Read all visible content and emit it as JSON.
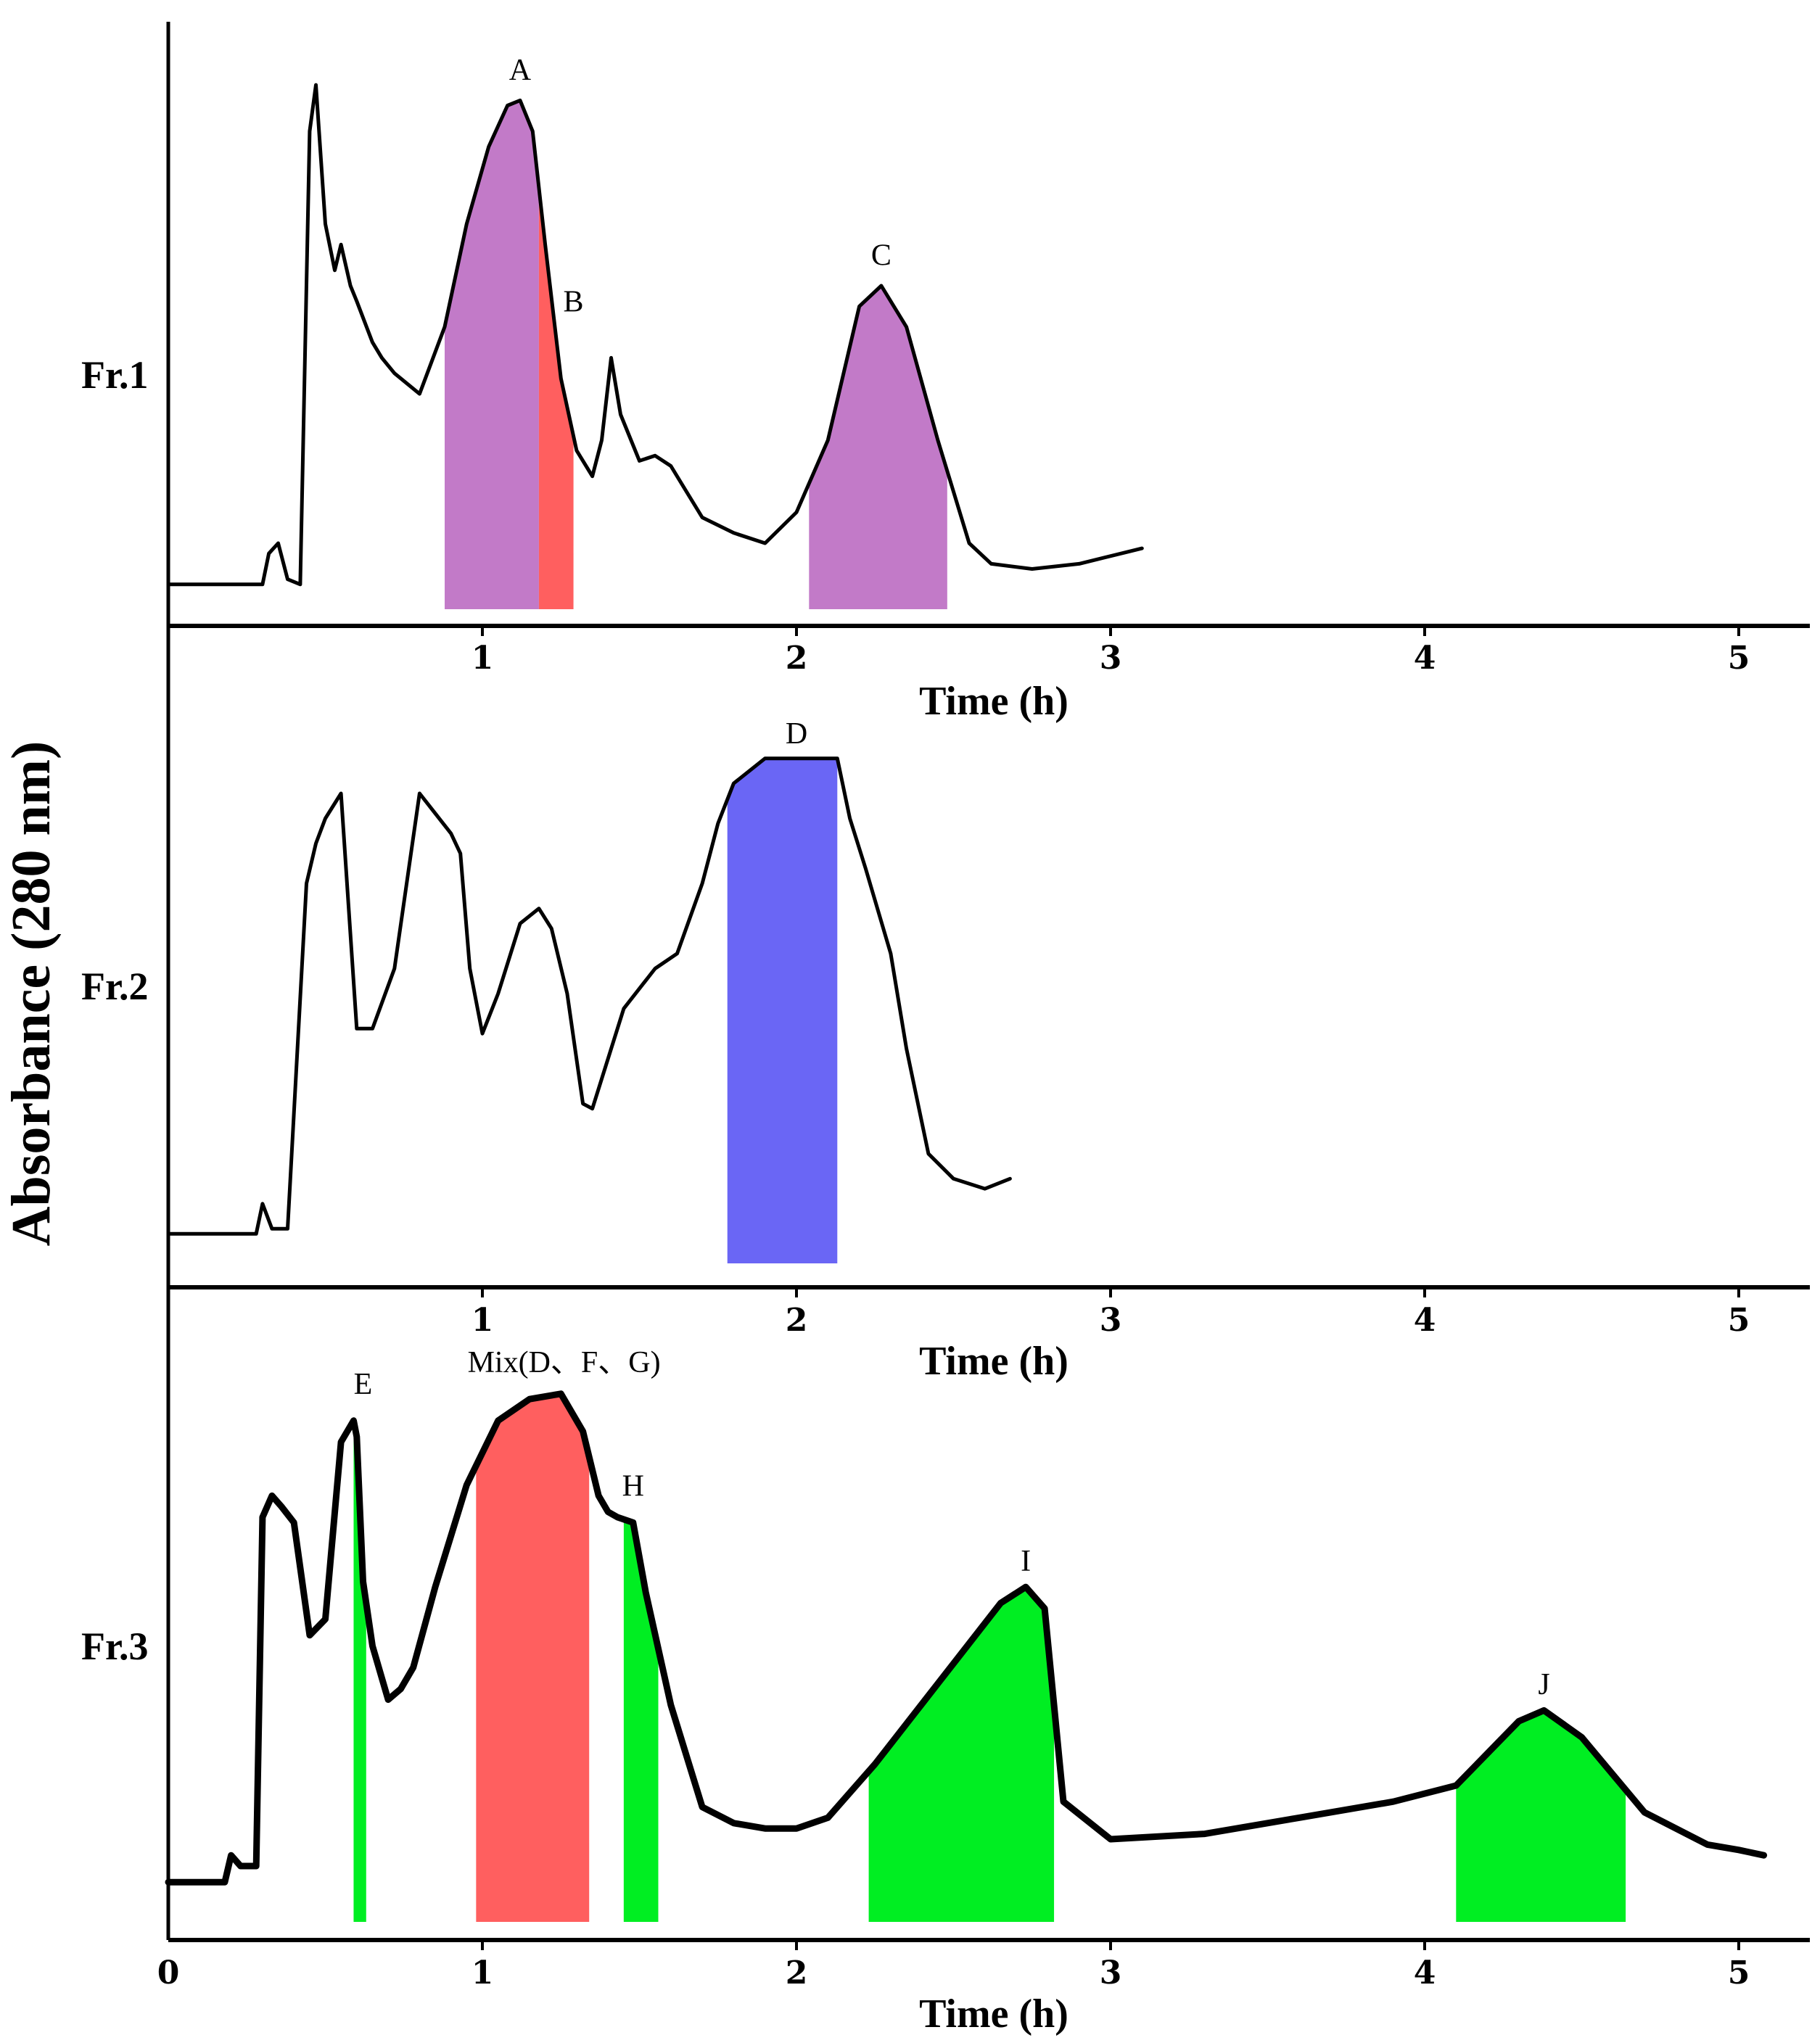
{
  "chart_data": {
    "type": "line",
    "ylabel": "Absorbance (280 nm)",
    "xlabel": "Time (h)",
    "xlim": [
      0,
      5.2
    ],
    "xticks": [
      "0",
      "1",
      "2",
      "3",
      "4",
      "5"
    ],
    "colors": {
      "purple": "#c27ac8",
      "red": "#ff5f5f",
      "blue": "#6a66f5",
      "green": "#00ee22",
      "line": "#000000"
    },
    "panels": [
      {
        "label": "Fr.1",
        "x_title": "Time (h)",
        "tick_labels": [
          "1",
          "2",
          "3",
          "4",
          "5"
        ],
        "x": [
          0,
          0.3,
          0.32,
          0.35,
          0.38,
          0.42,
          0.45,
          0.47,
          0.5,
          0.53,
          0.55,
          0.58,
          0.6,
          0.65,
          0.68,
          0.72,
          0.8,
          0.88,
          0.95,
          1.02,
          1.08,
          1.12,
          1.16,
          1.2,
          1.25,
          1.3,
          1.35,
          1.38,
          1.41,
          1.44,
          1.5,
          1.55,
          1.6,
          1.65,
          1.7,
          1.8,
          1.9,
          2.0,
          2.1,
          2.2,
          2.27,
          2.35,
          2.45,
          2.55,
          2.62,
          2.75,
          2.9,
          3.1
        ],
        "y": [
          0.02,
          0.02,
          0.08,
          0.1,
          0.03,
          0.02,
          0.9,
          0.99,
          0.72,
          0.63,
          0.68,
          0.6,
          0.57,
          0.49,
          0.46,
          0.43,
          0.39,
          0.52,
          0.72,
          0.87,
          0.95,
          0.96,
          0.9,
          0.68,
          0.42,
          0.28,
          0.23,
          0.3,
          0.46,
          0.35,
          0.26,
          0.27,
          0.25,
          0.2,
          0.15,
          0.12,
          0.1,
          0.16,
          0.3,
          0.56,
          0.6,
          0.52,
          0.3,
          0.1,
          0.06,
          0.05,
          0.06,
          0.09
        ],
        "shaded_regions": [
          {
            "label": "A",
            "from": 0.88,
            "to": 1.18,
            "color": "purple"
          },
          {
            "label": "B",
            "from": 1.18,
            "to": 1.29,
            "color": "red"
          },
          {
            "label": "C",
            "from": 2.04,
            "to": 2.48,
            "color": "purple"
          }
        ],
        "annotations": [
          {
            "text": "A",
            "x": 1.12,
            "y": 1.0
          },
          {
            "text": "B",
            "x": 1.29,
            "y": 0.55
          },
          {
            "text": "C",
            "x": 2.27,
            "y": 0.64
          }
        ]
      },
      {
        "label": "Fr.2",
        "x_title": "Time (h)",
        "tick_labels": [
          "1",
          "2",
          "3",
          "4",
          "5"
        ],
        "x": [
          0,
          0.28,
          0.3,
          0.33,
          0.38,
          0.44,
          0.47,
          0.5,
          0.55,
          0.6,
          0.65,
          0.72,
          0.8,
          0.85,
          0.9,
          0.93,
          0.96,
          1.0,
          1.05,
          1.12,
          1.18,
          1.22,
          1.27,
          1.32,
          1.35,
          1.45,
          1.55,
          1.62,
          1.7,
          1.75,
          1.8,
          1.9,
          2.0,
          2.13,
          2.17,
          2.22,
          2.3,
          2.35,
          2.42,
          2.5,
          2.6,
          2.68
        ],
        "y": [
          0.02,
          0.02,
          0.08,
          0.03,
          0.03,
          0.72,
          0.8,
          0.85,
          0.9,
          0.43,
          0.43,
          0.55,
          0.9,
          0.86,
          0.82,
          0.78,
          0.55,
          0.42,
          0.5,
          0.64,
          0.67,
          0.63,
          0.5,
          0.28,
          0.27,
          0.47,
          0.55,
          0.58,
          0.72,
          0.84,
          0.92,
          0.97,
          0.97,
          0.97,
          0.85,
          0.75,
          0.58,
          0.39,
          0.18,
          0.13,
          0.11,
          0.13
        ],
        "shaded_regions": [
          {
            "label": "D",
            "from": 1.78,
            "to": 2.13,
            "color": "blue"
          }
        ],
        "annotations": [
          {
            "text": "D",
            "x": 2.0,
            "y": 1.0
          }
        ]
      },
      {
        "label": "Fr.3",
        "x_title": "Time (h)",
        "tick_labels": [
          "0",
          "1",
          "2",
          "3",
          "4",
          "5"
        ],
        "x": [
          0,
          0.18,
          0.2,
          0.23,
          0.28,
          0.3,
          0.33,
          0.36,
          0.4,
          0.45,
          0.5,
          0.55,
          0.59,
          0.6,
          0.62,
          0.65,
          0.7,
          0.74,
          0.78,
          0.85,
          0.95,
          1.05,
          1.15,
          1.25,
          1.32,
          1.37,
          1.4,
          1.43,
          1.48,
          1.52,
          1.6,
          1.7,
          1.8,
          1.9,
          2.0,
          2.1,
          2.25,
          2.45,
          2.65,
          2.73,
          2.79,
          2.85,
          3.0,
          3.3,
          3.6,
          3.9,
          4.1,
          4.3,
          4.38,
          4.5,
          4.7,
          4.9,
          5.0,
          5.08
        ],
        "y": [
          0.02,
          0.02,
          0.07,
          0.05,
          0.05,
          0.7,
          0.74,
          0.72,
          0.69,
          0.48,
          0.51,
          0.84,
          0.88,
          0.85,
          0.58,
          0.46,
          0.36,
          0.38,
          0.42,
          0.57,
          0.76,
          0.88,
          0.92,
          0.93,
          0.86,
          0.74,
          0.71,
          0.7,
          0.69,
          0.56,
          0.35,
          0.16,
          0.13,
          0.12,
          0.12,
          0.14,
          0.24,
          0.39,
          0.54,
          0.57,
          0.53,
          0.17,
          0.1,
          0.11,
          0.14,
          0.17,
          0.2,
          0.32,
          0.34,
          0.29,
          0.15,
          0.09,
          0.08,
          0.07
        ],
        "shaded_regions": [
          {
            "label": "E",
            "from": 0.59,
            "to": 0.63,
            "color": "green"
          },
          {
            "label": "Mix(D、F、G)",
            "from": 0.98,
            "to": 1.34,
            "color": "red"
          },
          {
            "label": "H",
            "from": 1.45,
            "to": 1.56,
            "color": "green"
          },
          {
            "label": "I",
            "from": 2.23,
            "to": 2.82,
            "color": "green"
          },
          {
            "label": "J",
            "from": 4.1,
            "to": 4.64,
            "color": "green"
          }
        ],
        "annotations": [
          {
            "text": "E",
            "x": 0.62,
            "y": 0.93
          },
          {
            "text": "Mix(D、F、G)",
            "x": 1.26,
            "y": 0.97
          },
          {
            "text": "H",
            "x": 1.48,
            "y": 0.74
          },
          {
            "text": "I",
            "x": 2.73,
            "y": 0.6
          },
          {
            "text": "J",
            "x": 4.38,
            "y": 0.37
          }
        ]
      }
    ]
  }
}
